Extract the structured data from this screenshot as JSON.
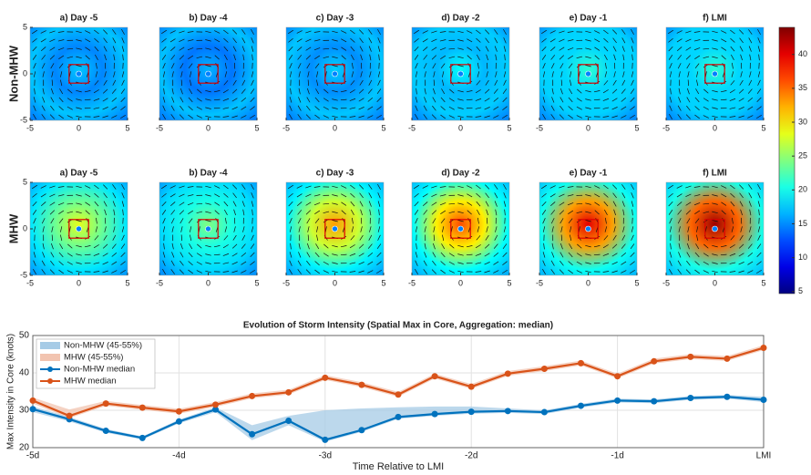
{
  "chart_data": [
    {
      "type": "map-grid",
      "row_labels": [
        "Non-MHW",
        "MHW"
      ],
      "panel_titles": [
        [
          "a) Day -5",
          "b) Day -4",
          "c) Day -3",
          "d) Day -2",
          "e) Day -1",
          "f) LMI"
        ],
        [
          "a) Day -5",
          "b) Day -4",
          "c) Day -3",
          "d) Day -2",
          "e) Day -1",
          "f) LMI"
        ]
      ],
      "xlim": [
        -5,
        5
      ],
      "ylim": [
        -5,
        5
      ],
      "xticks": [
        -5,
        0,
        5
      ],
      "yticks": [
        -5,
        0,
        5
      ],
      "colorbar": {
        "lim": [
          4.7,
          44
        ],
        "ticks": [
          5,
          10,
          15,
          20,
          25,
          30,
          35,
          40
        ],
        "colormap": "jet"
      }
    },
    {
      "type": "line",
      "title": "Evolution of Storm Intensity (Spatial Max in Core, Aggregation: median)",
      "x_label": "Time Relative to LMI",
      "y_label": "Max Intensity in Core (knots)",
      "x": [
        -5,
        -4.75,
        -4.5,
        -4.25,
        -4,
        -3.75,
        -3.5,
        -3.25,
        -3,
        -2.75,
        -2.5,
        -2.25,
        -2,
        -1.75,
        -1.5,
        -1.25,
        -1,
        -0.75,
        -0.5,
        -0.25,
        0
      ],
      "xlim": [
        -5,
        0
      ],
      "xticks": [
        {
          "value": -5,
          "label": "-5d"
        },
        {
          "value": -4,
          "label": "-4d"
        },
        {
          "value": -3,
          "label": "-3d"
        },
        {
          "value": -2,
          "label": "-2d"
        },
        {
          "value": -1,
          "label": "-1d"
        },
        {
          "value": 0,
          "label": "LMI"
        }
      ],
      "ylim": [
        20,
        50
      ],
      "yticks": [
        20,
        30,
        40,
        50
      ],
      "grid": true,
      "legend": "upper-left",
      "series": [
        {
          "name": "Non-MHW (45-55%)",
          "kind": "band",
          "color": "#a6cbe6",
          "lower": [
            29.5,
            27,
            24,
            22.2,
            26.5,
            29.5,
            22,
            26,
            21.6,
            24.2,
            27.7,
            28.5,
            29.1,
            29.3,
            29,
            30.7,
            32.1,
            31.9,
            32.8,
            33.1,
            32.2
          ],
          "upper": [
            31,
            28.2,
            25,
            23,
            27.5,
            30.8,
            26,
            28.5,
            30,
            30.5,
            30.8,
            31,
            31,
            30.5,
            30,
            31.7,
            33.1,
            32.9,
            33.8,
            34.1,
            33.6
          ]
        },
        {
          "name": "MHW (45-55%)",
          "kind": "band",
          "color": "#f2c4b0",
          "lower": [
            31.8,
            27.9,
            31.2,
            30.1,
            29.1,
            30.9,
            33.2,
            34.2,
            38.1,
            36.2,
            33.6,
            38.5,
            35.7,
            39.2,
            40.5,
            42,
            38.5,
            42.5,
            43.7,
            43.2,
            46.1
          ],
          "upper": [
            33.4,
            30.2,
            32.5,
            31.4,
            30.4,
            32.2,
            34.5,
            35.5,
            39.4,
            37.5,
            34.9,
            39.8,
            37,
            40.5,
            41.8,
            43.3,
            39.8,
            43.8,
            45,
            44.5,
            47.4
          ]
        },
        {
          "name": "Non-MHW median",
          "kind": "line",
          "color": "#0072bd",
          "values": [
            30.3,
            27.6,
            24.5,
            22.6,
            27,
            30.2,
            23.6,
            27.2,
            22.1,
            24.7,
            28.2,
            29,
            29.6,
            29.8,
            29.5,
            31.2,
            32.6,
            32.4,
            33.3,
            33.6,
            32.8
          ]
        },
        {
          "name": "MHW median",
          "kind": "line",
          "color": "#d95319",
          "values": [
            32.6,
            28.5,
            31.8,
            30.7,
            29.7,
            31.5,
            33.8,
            34.8,
            38.7,
            36.8,
            34.2,
            39.1,
            36.3,
            39.8,
            41.1,
            42.6,
            39.1,
            43.1,
            44.3,
            43.8,
            46.7
          ]
        }
      ]
    }
  ]
}
